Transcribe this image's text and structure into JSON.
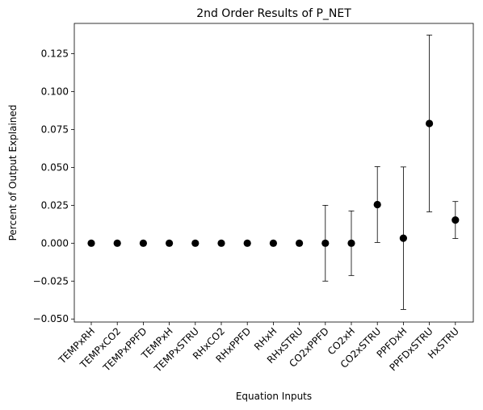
{
  "chart_data": {
    "type": "scatter",
    "title": "2nd Order Results of P_NET",
    "xlabel": "Equation Inputs",
    "ylabel": "Percent of Output Explained",
    "ylim": [
      -0.052,
      0.145
    ],
    "yticks": [
      -0.05,
      -0.025,
      0.0,
      0.025,
      0.05,
      0.075,
      0.1,
      0.125
    ],
    "ytick_labels": [
      "−0.050",
      "−0.025",
      "0.000",
      "0.025",
      "0.050",
      "0.075",
      "0.100",
      "0.125"
    ],
    "categories": [
      "TEMPxRH",
      "TEMPxCO2",
      "TEMPxPPFD",
      "TEMPxH",
      "TEMPxSTRU",
      "RHxCO2",
      "RHxPPFD",
      "RHxH",
      "RHxSTRU",
      "CO2xPPFD",
      "CO2xH",
      "CO2xSTRU",
      "PPFDxH",
      "PPFDxSTRU",
      "HxSTRU"
    ],
    "values": [
      0.0,
      0.0,
      0.0,
      0.0,
      0.0,
      0.0,
      0.0,
      0.0,
      0.0,
      0.0,
      0.0,
      0.0255,
      0.0033,
      0.079,
      0.0153
    ],
    "errors": [
      0.0,
      0.0,
      0.0,
      0.0,
      0.0,
      0.0,
      0.0,
      0.0,
      0.0,
      0.025,
      0.0213,
      0.025,
      0.047,
      0.0583,
      0.0122
    ],
    "grid": false,
    "marker_color": "#000000"
  }
}
